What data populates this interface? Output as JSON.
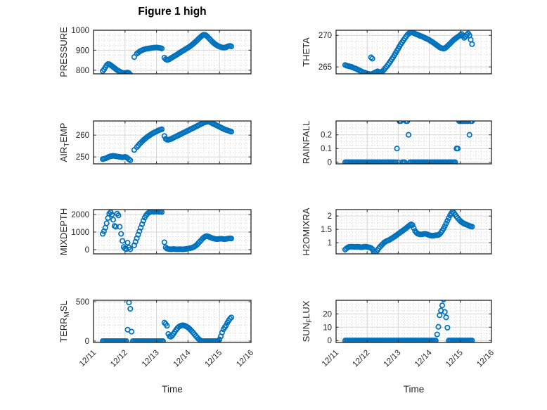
{
  "figure": {
    "title": "Figure 1 high",
    "xlabel": "Time"
  },
  "colors": {
    "marker": "#0072BD",
    "axis": "#262626",
    "grid_major": "#d6d6d6",
    "grid_minor": "#d0d0d0",
    "background": "#ffffff",
    "title_color": "#000000"
  },
  "axes": {
    "xlim": [
      0,
      5
    ],
    "x_ticks": [
      0,
      1,
      2,
      3,
      4,
      5
    ],
    "x_tick_labels": [
      "12/11",
      "12/12",
      "12/13",
      "12/14",
      "12/15",
      "12/16"
    ],
    "x_minor_per_day": 6
  },
  "chart_data": [
    {
      "id": "pressure",
      "type": "scatter",
      "row": 0,
      "col": 0,
      "ylabel": "PRESSURE",
      "ylabel_parts": [
        {
          "text": "PRESSURE"
        }
      ],
      "yticks": [
        800,
        900,
        1000
      ],
      "ytick_labels": [
        "800",
        "900",
        "1000"
      ],
      "ylim": [
        782,
        1000
      ],
      "y_minor_step": 25,
      "t0": 0.2917,
      "dt": 0.041667,
      "values": [
        796,
        804,
        815,
        825,
        831,
        830,
        826,
        821,
        816,
        811,
        806,
        801,
        797,
        793,
        790,
        787,
        785,
        786,
        788,
        789,
        786,
        778,
        null,
        null,
        866,
        null,
        883,
        888,
        893,
        897,
        900,
        903,
        905,
        907,
        908,
        909,
        910,
        911,
        912,
        913,
        913,
        914,
        913,
        912,
        911,
        909,
        null,
        863,
        855,
        852,
        853,
        856,
        860,
        864,
        868,
        872,
        876,
        880,
        885,
        889,
        893,
        897,
        901,
        905,
        909,
        913,
        917,
        922,
        927,
        932,
        938,
        944,
        950,
        957,
        963,
        969,
        974,
        978,
        977,
        973,
        967,
        960,
        953,
        946,
        940,
        934,
        929,
        925,
        921,
        918,
        916,
        914,
        913,
        913,
        915,
        918,
        921,
        922,
        919
      ]
    },
    {
      "id": "theta",
      "type": "scatter",
      "row": 0,
      "col": 1,
      "ylabel": "THETA",
      "ylabel_parts": [
        {
          "text": "THETA"
        }
      ],
      "yticks": [
        265,
        270
      ],
      "ytick_labels": [
        "265",
        "270"
      ],
      "ylim": [
        263.9,
        270.8
      ],
      "y_minor_step": 1,
      "t0": 0.2917,
      "dt": 0.041667,
      "values": [
        265.3,
        265.2,
        265.15,
        265.1,
        265.05,
        265.0,
        264.9,
        264.8,
        264.75,
        264.65,
        264.55,
        264.45,
        264.35,
        264.25,
        264.15,
        264.1,
        264.0,
        263.95,
        263.9,
        263.85,
        263.85,
        263.9,
        264.0,
        264.1,
        264.2,
        264.3,
        264.2,
        264.1,
        264.2,
        264.35,
        264.55,
        264.8,
        265.05,
        265.3,
        265.6,
        265.9,
        266.2,
        266.5,
        266.85,
        267.2,
        267.55,
        267.9,
        268.25,
        268.6,
        268.9,
        269.2,
        269.5,
        269.8,
        270.05,
        270.25,
        270.4,
        270.5,
        270.45,
        270.35,
        270.25,
        270.15,
        270.1,
        270.0,
        269.9,
        269.85,
        269.75,
        269.65,
        269.55,
        269.45,
        269.35,
        269.25,
        269.1,
        269.0,
        268.85,
        268.7,
        268.55,
        268.4,
        268.25,
        268.1,
        268.0,
        267.95,
        267.9,
        267.95,
        268.1,
        268.3,
        268.5,
        268.7,
        268.9,
        269.1,
        269.3,
        269.45,
        269.6,
        269.75,
        269.9,
        270.05,
        270.2,
        269.9,
        269.6,
        269.8,
        270.1,
        270.3,
        270.0,
        269.3,
        268.6
      ],
      "extra_points": [
        [
          1.125,
          266.5
        ],
        [
          1.167,
          266.3
        ]
      ]
    },
    {
      "id": "air-temp",
      "type": "scatter",
      "row": 1,
      "col": 0,
      "ylabel": "AIR_TEMP",
      "ylabel_parts": [
        {
          "text": "AIR"
        },
        {
          "text": "T",
          "sub": true
        },
        {
          "text": "EMP"
        }
      ],
      "yticks": [
        250,
        260
      ],
      "ytick_labels": [
        "250",
        "260"
      ],
      "ylim": [
        246.8,
        266.5
      ],
      "y_minor_step": 2,
      "t0": 0.2917,
      "dt": 0.041667,
      "values": [
        249.0,
        249.1,
        249.3,
        249.5,
        249.8,
        250.1,
        250.3,
        250.4,
        250.5,
        250.4,
        250.3,
        250.2,
        250.1,
        250.0,
        249.9,
        249.8,
        249.9,
        250.0,
        249.8,
        249.4,
        248.9,
        248.4,
        null,
        null,
        253.2,
        null,
        254.5,
        255.2,
        255.9,
        256.5,
        257.1,
        257.7,
        258.2,
        258.7,
        259.2,
        259.6,
        260.0,
        260.4,
        260.8,
        261.1,
        261.4,
        261.7,
        262.0,
        262.3,
        262.5,
        262.7,
        null,
        259.6,
        258.3,
        257.9,
        257.8,
        258.0,
        258.2,
        258.5,
        258.8,
        259.1,
        259.4,
        259.7,
        260.0,
        260.3,
        260.6,
        260.9,
        261.2,
        261.5,
        261.8,
        262.1,
        262.4,
        262.7,
        263.0,
        263.3,
        263.6,
        263.9,
        264.2,
        264.5,
        264.8,
        265.1,
        265.4,
        265.7,
        265.9,
        266.1,
        266.2,
        266.1,
        265.9,
        265.6,
        265.3,
        265.0,
        264.7,
        264.4,
        264.1,
        263.8,
        263.5,
        263.2,
        262.9,
        262.6,
        262.4,
        262.2,
        262.0,
        261.8,
        261.6
      ]
    },
    {
      "id": "rainfall",
      "type": "scatter",
      "row": 1,
      "col": 1,
      "ylabel": "RAINFALL",
      "ylabel_parts": [
        {
          "text": "RAINFALL"
        }
      ],
      "yticks": [
        0,
        0.1,
        0.2
      ],
      "ytick_labels": [
        "0",
        "0.1",
        "0.2"
      ],
      "ylim": [
        -0.012,
        0.301
      ],
      "y_minor_step": 0.025,
      "t0": 0.2917,
      "dt": 0.041667,
      "values": [
        0,
        0,
        0,
        0,
        0,
        0,
        0,
        0,
        0,
        0,
        0,
        0,
        0,
        0,
        0,
        0,
        0,
        0,
        0,
        0,
        0,
        0,
        0,
        0,
        0,
        0,
        0,
        0,
        0,
        0,
        0,
        0,
        0,
        0,
        0,
        0,
        0,
        0,
        0,
        0,
        0.1,
        0,
        0.3,
        0.3,
        0,
        0,
        0,
        0.3,
        0.3,
        0.2,
        0,
        0,
        0,
        0,
        0,
        0,
        0,
        0,
        0,
        0,
        0,
        0,
        0,
        0,
        0,
        0,
        0,
        0,
        0,
        0,
        0,
        0,
        0,
        0,
        0,
        0,
        0,
        0,
        0,
        0,
        0,
        0,
        0,
        0,
        0,
        0,
        0.1,
        0.1,
        0.3,
        0.3,
        0.3,
        0.3,
        0.3,
        0.3,
        0.3,
        0.3,
        0.2,
        0.3,
        0.3
      ]
    },
    {
      "id": "mixdepth",
      "type": "scatter",
      "row": 2,
      "col": 0,
      "ylabel": "MIXDEPTH",
      "ylabel_parts": [
        {
          "text": "MIXDEPTH"
        }
      ],
      "yticks": [
        0,
        1000,
        2000
      ],
      "ytick_labels": [
        "0",
        "1000",
        "2000"
      ],
      "ylim": [
        -240,
        2280
      ],
      "y_minor_step": 250,
      "t0": 0.2917,
      "dt": 0.041667,
      "values": [
        900,
        1050,
        1250,
        1500,
        1800,
        2050,
        2130,
        2000,
        1700,
        1350,
        1300,
        2050,
        1950,
        1300,
        900,
        500,
        150,
        60,
        30,
        400,
        120,
        20,
        null,
        null,
        250,
        450,
        650,
        850,
        1050,
        1250,
        1450,
        1650,
        1820,
        1950,
        2040,
        2100,
        2140,
        2160,
        2180,
        2150,
        2180,
        2160,
        2190,
        2150,
        2170,
        2140,
        null,
        420,
        130,
        60,
        40,
        30,
        25,
        30,
        40,
        30,
        25,
        20,
        25,
        30,
        25,
        20,
        25,
        35,
        45,
        60,
        75,
        90,
        110,
        140,
        180,
        230,
        300,
        380,
        460,
        540,
        620,
        690,
        740,
        770,
        760,
        730,
        700,
        670,
        645,
        625,
        610,
        600,
        605,
        615,
        620,
        615,
        605,
        600,
        610,
        625,
        640,
        645,
        635
      ]
    },
    {
      "id": "h2omixra",
      "type": "scatter",
      "row": 2,
      "col": 1,
      "ylabel": "H2OMIXRA",
      "ylabel_parts": [
        {
          "text": "H2OMIXRA"
        }
      ],
      "yticks": [
        1,
        1.5,
        2
      ],
      "ytick_labels": [
        "1",
        "1.5",
        "2"
      ],
      "ylim": [
        0.58,
        2.24
      ],
      "y_minor_step": 0.125,
      "t0": 0.2917,
      "dt": 0.041667,
      "values": [
        0.74,
        0.78,
        0.82,
        0.84,
        0.85,
        0.85,
        0.85,
        0.84,
        0.84,
        0.85,
        0.85,
        0.84,
        0.83,
        0.83,
        0.84,
        0.85,
        0.85,
        0.84,
        0.83,
        0.82,
        0.8,
        0.76,
        0.66,
        0.62,
        0.66,
        0.72,
        0.79,
        0.85,
        0.9,
        0.95,
        1.0,
        1.03,
        1.06,
        1.08,
        1.1,
        1.13,
        1.16,
        1.19,
        1.22,
        1.26,
        1.29,
        1.33,
        1.36,
        1.4,
        1.43,
        1.47,
        1.5,
        1.54,
        1.58,
        1.62,
        1.66,
        1.69,
        1.66,
        1.55,
        1.44,
        1.38,
        1.34,
        1.32,
        1.31,
        1.31,
        1.32,
        1.33,
        1.33,
        1.32,
        1.3,
        1.28,
        1.27,
        1.26,
        1.26,
        1.27,
        1.28,
        1.28,
        1.29,
        1.32,
        1.38,
        1.45,
        1.53,
        1.62,
        1.72,
        1.82,
        1.92,
        2.02,
        2.1,
        2.16,
        2.12,
        2.05,
        1.98,
        1.92,
        1.86,
        1.81,
        1.77,
        1.74,
        1.71,
        1.69,
        1.67,
        1.65,
        1.63,
        1.61,
        1.6
      ]
    },
    {
      "id": "terr-msl",
      "type": "scatter",
      "row": 3,
      "col": 0,
      "ylabel": "TERR_MSL",
      "ylabel_parts": [
        {
          "text": "TERR"
        },
        {
          "text": "M",
          "sub": true
        },
        {
          "text": "SL"
        }
      ],
      "yticks": [
        0,
        500
      ],
      "ytick_labels": [
        "0",
        "500"
      ],
      "ylim": [
        -18,
        518
      ],
      "y_minor_step": 100,
      "t0": 0.2917,
      "dt": 0.041667,
      "values": [
        0,
        0,
        0,
        0,
        0,
        0,
        0,
        0,
        0,
        0,
        0,
        0,
        0,
        0,
        0,
        0,
        0,
        0,
        0,
        145,
        490,
        410,
        120,
        0,
        0,
        0,
        0,
        0,
        0,
        0,
        0,
        0,
        0,
        0,
        0,
        0,
        0,
        0,
        0,
        0,
        0,
        0,
        0,
        0,
        0,
        0,
        0,
        235,
        218,
        195,
        90,
        60,
        55,
        70,
        95,
        120,
        145,
        165,
        180,
        192,
        198,
        200,
        198,
        192,
        183,
        172,
        158,
        142,
        124,
        105,
        85,
        65,
        45,
        28,
        14,
        5,
        0,
        0,
        0,
        0,
        0,
        0,
        0,
        0,
        0,
        0,
        0,
        0,
        0,
        20,
        60,
        110,
        150,
        175,
        200,
        235,
        262,
        285,
        300
      ],
      "has_x_labels": true
    },
    {
      "id": "sun-flux",
      "type": "scatter",
      "row": 3,
      "col": 1,
      "ylabel": "SUN_FLUX",
      "ylabel_parts": [
        {
          "text": "SUN"
        },
        {
          "text": "F",
          "sub": true
        },
        {
          "text": "LUX"
        }
      ],
      "yticks": [
        0,
        10,
        20
      ],
      "ytick_labels": [
        "0",
        "10",
        "20"
      ],
      "ylim": [
        -1.5,
        30.3
      ],
      "y_minor_step": 2.5,
      "t0": 0.2917,
      "dt": 0.041667,
      "values": [
        0,
        0,
        0,
        0,
        0,
        0,
        0,
        0,
        0,
        0,
        0,
        0,
        0,
        0,
        0,
        0,
        0,
        0,
        0,
        0,
        0,
        0,
        0,
        0,
        0,
        0,
        0,
        0,
        0,
        0,
        0,
        0,
        0,
        0,
        0,
        0,
        0,
        0,
        0,
        0,
        0,
        0,
        0,
        0,
        0,
        0,
        0,
        0,
        0,
        0,
        0,
        0,
        0,
        0,
        0,
        0,
        0,
        0,
        0,
        0,
        0,
        0,
        0,
        0,
        0,
        0,
        0,
        0,
        0,
        0,
        0,
        4.6,
        10.3,
        19,
        22.5,
        26.5,
        31,
        21.5,
        17.4,
        9.7,
        0,
        0,
        0,
        0,
        0,
        0,
        0,
        0,
        0,
        0,
        0,
        0,
        0,
        0,
        0,
        0,
        0,
        0,
        0
      ],
      "has_x_labels": true
    }
  ]
}
